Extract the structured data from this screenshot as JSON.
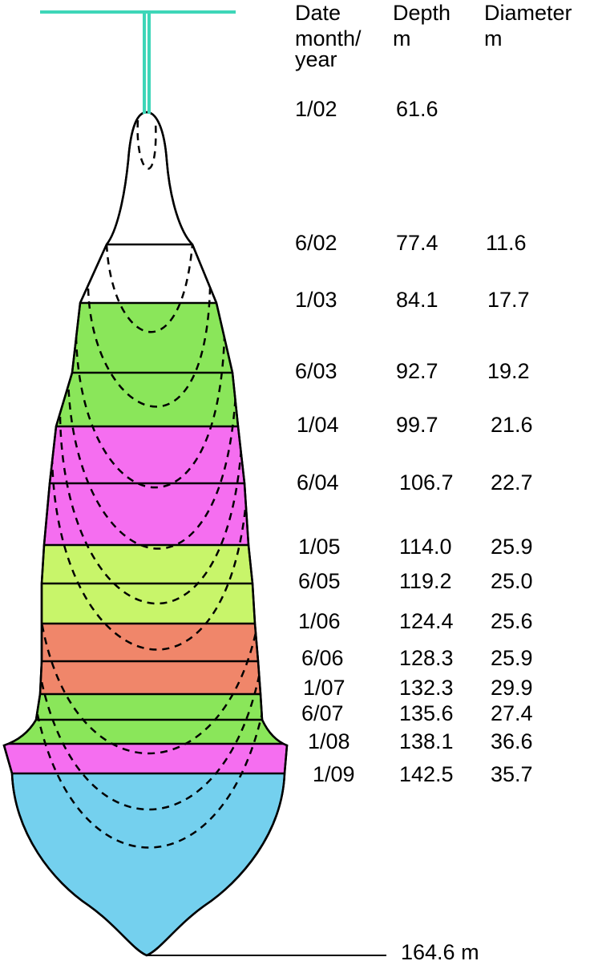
{
  "table": {
    "header": {
      "date": [
        "Date",
        "month/",
        "year"
      ],
      "depth": [
        "Depth",
        "m"
      ],
      "diameter": [
        "Diameter",
        "m"
      ]
    },
    "rows": [
      {
        "date": "1/02",
        "depth": "61.6"
      },
      {
        "date": "6/02",
        "depth": "77.4",
        "diameter": "11.6"
      },
      {
        "date": "1/03",
        "depth": "84.1",
        "diameter": "17.7"
      },
      {
        "date": "6/03",
        "depth": "92.7",
        "diameter": "19.2"
      },
      {
        "date": "1/04",
        "depth": "99.7",
        "diameter": "21.6"
      },
      {
        "date": "6/04",
        "depth": "106.7",
        "diameter": "22.7"
      },
      {
        "date": "1/05",
        "depth": "114.0",
        "diameter": "25.9"
      },
      {
        "date": "6/05",
        "depth": "119.2",
        "diameter": "25.0"
      },
      {
        "date": "1/06",
        "depth": "124.4",
        "diameter": "25.6"
      },
      {
        "date": "6/06",
        "depth": "128.3",
        "diameter": "25.9"
      },
      {
        "date": "1/07",
        "depth": "132.3",
        "diameter": "29.9"
      },
      {
        "date": "6/07",
        "depth": "135.6",
        "diameter": "27.4"
      },
      {
        "date": "1/08",
        "depth": "138.1",
        "diameter": "36.6"
      },
      {
        "date": "1/09",
        "depth": "142.5",
        "diameter": "35.7"
      }
    ]
  },
  "bottom_label": "164.6 m"
}
